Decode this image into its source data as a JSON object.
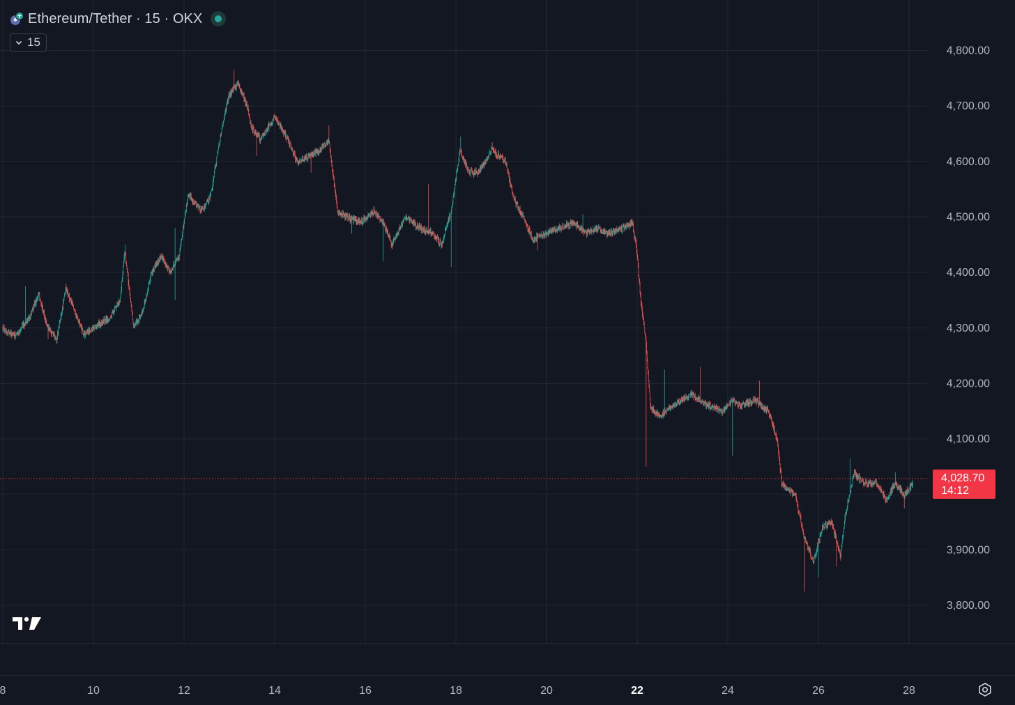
{
  "header": {
    "symbol_title": "Ethereum/Tether · 15 · OKX",
    "interval_label": "15"
  },
  "price_tag": {
    "price": "4,028.70",
    "countdown": "14:12"
  },
  "colors": {
    "background": "#131722",
    "grid": "#232733",
    "up": "#26a69a",
    "down": "#ef5350",
    "text": "#d1d4dc",
    "axis_text": "#b2b5be",
    "price_tag": "#f23645"
  },
  "icons": {
    "logo": "ethereum-tether-logo",
    "interval": "chevron-down-icon",
    "brand": "tradingview-logo",
    "settings": "settings-gear-icon"
  },
  "chart_data": {
    "type": "candlestick",
    "title": "Ethereum/Tether · 15 · OKX",
    "interval": "15",
    "exchange": "OKX",
    "y_axis": {
      "position": "right",
      "ticks": [
        3800,
        3900,
        4000,
        4100,
        4200,
        4300,
        4400,
        4500,
        4600,
        4700,
        4800
      ],
      "tick_labels": [
        "3,800.00",
        "3,900.00",
        "",
        "4,100.00",
        "4,200.00",
        "4,300.00",
        "4,400.00",
        "4,500.00",
        "4,600.00",
        "4,700.00",
        "4,800.00"
      ],
      "ylim": [
        3730,
        4880
      ]
    },
    "x_axis": {
      "tick_labels": [
        "8",
        "10",
        "12",
        "14",
        "16",
        "18",
        "20",
        "22",
        "24",
        "26",
        "28"
      ],
      "tick_days": [
        8,
        10,
        12,
        14,
        16,
        18,
        20,
        22,
        24,
        26,
        28
      ],
      "bold_labels": [
        "22"
      ],
      "xlim": [
        8,
        28.35
      ]
    },
    "grid": true,
    "last_price": 4028.7,
    "countdown": "14:12",
    "price_path": [
      [
        8.0,
        4300
      ],
      [
        8.3,
        4285
      ],
      [
        8.6,
        4320
      ],
      [
        8.8,
        4360
      ],
      [
        9.0,
        4300
      ],
      [
        9.2,
        4280
      ],
      [
        9.4,
        4370
      ],
      [
        9.6,
        4330
      ],
      [
        9.8,
        4290
      ],
      [
        10.0,
        4300
      ],
      [
        10.2,
        4310
      ],
      [
        10.4,
        4320
      ],
      [
        10.6,
        4350
      ],
      [
        10.7,
        4440
      ],
      [
        10.9,
        4300
      ],
      [
        11.1,
        4330
      ],
      [
        11.3,
        4400
      ],
      [
        11.5,
        4430
      ],
      [
        11.7,
        4400
      ],
      [
        11.9,
        4430
      ],
      [
        12.1,
        4540
      ],
      [
        12.4,
        4510
      ],
      [
        12.6,
        4540
      ],
      [
        12.8,
        4640
      ],
      [
        13.0,
        4720
      ],
      [
        13.2,
        4740
      ],
      [
        13.4,
        4700
      ],
      [
        13.5,
        4660
      ],
      [
        13.7,
        4640
      ],
      [
        14.0,
        4680
      ],
      [
        14.3,
        4640
      ],
      [
        14.5,
        4600
      ],
      [
        14.8,
        4610
      ],
      [
        15.0,
        4620
      ],
      [
        15.2,
        4640
      ],
      [
        15.4,
        4510
      ],
      [
        15.6,
        4500
      ],
      [
        15.9,
        4490
      ],
      [
        16.2,
        4510
      ],
      [
        16.4,
        4490
      ],
      [
        16.6,
        4450
      ],
      [
        16.9,
        4500
      ],
      [
        17.2,
        4480
      ],
      [
        17.5,
        4470
      ],
      [
        17.7,
        4450
      ],
      [
        17.9,
        4510
      ],
      [
        18.1,
        4620
      ],
      [
        18.3,
        4580
      ],
      [
        18.5,
        4580
      ],
      [
        18.8,
        4620
      ],
      [
        19.1,
        4600
      ],
      [
        19.3,
        4530
      ],
      [
        19.5,
        4500
      ],
      [
        19.7,
        4460
      ],
      [
        20.0,
        4470
      ],
      [
        20.3,
        4480
      ],
      [
        20.6,
        4490
      ],
      [
        20.9,
        4470
      ],
      [
        21.1,
        4480
      ],
      [
        21.4,
        4470
      ],
      [
        21.7,
        4480
      ],
      [
        21.9,
        4490
      ],
      [
        22.0,
        4440
      ],
      [
        22.1,
        4340
      ],
      [
        22.2,
        4280
      ],
      [
        22.3,
        4160
      ],
      [
        22.5,
        4140
      ],
      [
        22.8,
        4160
      ],
      [
        23.0,
        4170
      ],
      [
        23.2,
        4180
      ],
      [
        23.4,
        4170
      ],
      [
        23.6,
        4160
      ],
      [
        23.9,
        4150
      ],
      [
        24.1,
        4170
      ],
      [
        24.3,
        4160
      ],
      [
        24.6,
        4170
      ],
      [
        24.9,
        4150
      ],
      [
        25.1,
        4100
      ],
      [
        25.2,
        4020
      ],
      [
        25.3,
        4010
      ],
      [
        25.5,
        4000
      ],
      [
        25.7,
        3920
      ],
      [
        25.9,
        3880
      ],
      [
        26.1,
        3940
      ],
      [
        26.3,
        3950
      ],
      [
        26.5,
        3890
      ],
      [
        26.6,
        3960
      ],
      [
        26.8,
        4040
      ],
      [
        27.0,
        4020
      ],
      [
        27.3,
        4020
      ],
      [
        27.5,
        3990
      ],
      [
        27.7,
        4020
      ],
      [
        27.9,
        4000
      ],
      [
        28.1,
        4020
      ],
      [
        28.2,
        4028.7
      ]
    ],
    "extremes": [
      [
        8.5,
        4375,
        "high"
      ],
      [
        9.0,
        4280,
        "low"
      ],
      [
        9.4,
        4380,
        "high"
      ],
      [
        9.8,
        4280,
        "low"
      ],
      [
        10.7,
        4450,
        "high"
      ],
      [
        11.0,
        4305,
        "low"
      ],
      [
        11.8,
        4480,
        "high"
      ],
      [
        11.8,
        4350,
        "low"
      ],
      [
        13.1,
        4765,
        "high"
      ],
      [
        13.6,
        4610,
        "low"
      ],
      [
        14.8,
        4580,
        "low"
      ],
      [
        15.2,
        4665,
        "high"
      ],
      [
        15.7,
        4470,
        "low"
      ],
      [
        16.4,
        4420,
        "low"
      ],
      [
        17.4,
        4560,
        "high"
      ],
      [
        17.9,
        4410,
        "low"
      ],
      [
        18.1,
        4645,
        "high"
      ],
      [
        18.8,
        4635,
        "high"
      ],
      [
        19.8,
        4440,
        "low"
      ],
      [
        20.8,
        4505,
        "high"
      ],
      [
        22.2,
        4050,
        "low"
      ],
      [
        22.6,
        4225,
        "high"
      ],
      [
        23.4,
        4230,
        "high"
      ],
      [
        24.1,
        4070,
        "low"
      ],
      [
        24.7,
        4205,
        "high"
      ],
      [
        25.7,
        3825,
        "low"
      ],
      [
        26.0,
        3850,
        "low"
      ],
      [
        26.4,
        3870,
        "low"
      ],
      [
        26.7,
        4065,
        "high"
      ],
      [
        27.7,
        4040,
        "high"
      ],
      [
        27.9,
        3975,
        "low"
      ]
    ]
  }
}
